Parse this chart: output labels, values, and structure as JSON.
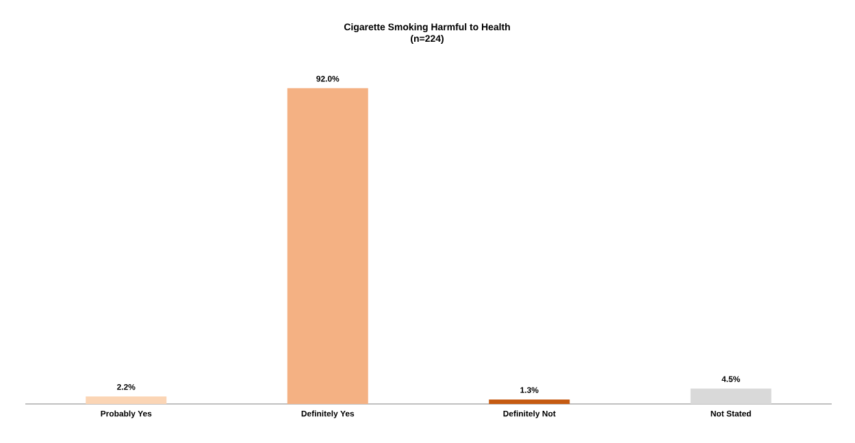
{
  "chart_data": {
    "type": "bar",
    "title": "Cigarette Smoking Harmful to Health",
    "subtitle": "(n=224)",
    "categories": [
      "Probably Yes",
      "Definitely Yes",
      "Definitely Not",
      "Not Stated"
    ],
    "values": [
      2.2,
      92.0,
      1.3,
      4.5
    ],
    "value_labels": [
      "2.2%",
      "92.0%",
      "1.3%",
      "4.5%"
    ],
    "colors": [
      "#fbd5b5",
      "#f4b183",
      "#c55a11",
      "#d9d9d9"
    ]
  }
}
